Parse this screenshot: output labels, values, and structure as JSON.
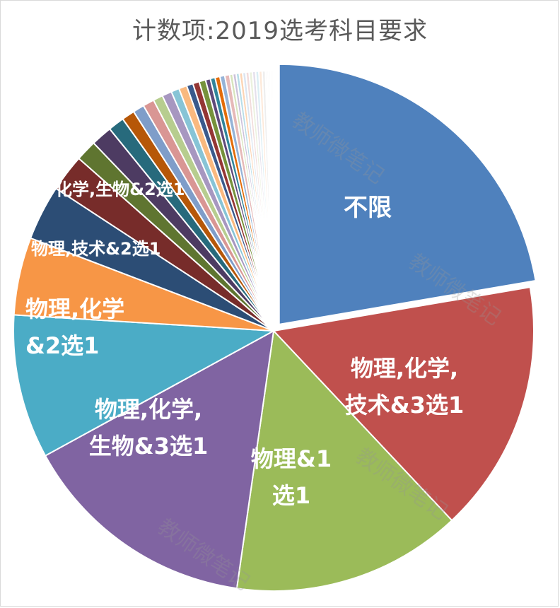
{
  "watermark_text": "教师微笔记",
  "chart_data": {
    "type": "pie",
    "title": "计数项:2019选考科目要求",
    "slices": [
      {
        "label": "不限",
        "value": 22.2,
        "color": "#4f81bd",
        "label_lines": [
          "不限"
        ]
      },
      {
        "label": "物理,化学,技术&3选1",
        "value": 15.6,
        "color": "#c0504d",
        "label_lines": [
          "物理,化学,",
          "技术&3选1"
        ]
      },
      {
        "label": "物理&1选1",
        "value": 14.2,
        "color": "#9bbb59",
        "label_lines": [
          "物理&1",
          "选1"
        ]
      },
      {
        "label": "物理,化学,生物&3选1",
        "value": 14.7,
        "color": "#8064a2",
        "label_lines": [
          "物理,化学,",
          "生物&3选1"
        ]
      },
      {
        "label": "物理,化学&2选1",
        "value": 8.9,
        "color": "#4bacc6",
        "label_lines": [
          "物理,化学",
          "&2选1"
        ]
      },
      {
        "label": "物理,技术&2选1",
        "value": 4.8,
        "color": "#f79646",
        "label_lines": [
          "物理,技术&2选1"
        ]
      },
      {
        "label": "化学,生物&2选1",
        "value": 3.4,
        "color": "#2c4d75",
        "label_lines": [
          "化学,生物&2选1"
        ]
      },
      {
        "label": "",
        "value": 2.3,
        "color": "#772c2a",
        "label_lines": []
      },
      {
        "label": "",
        "value": 1.3,
        "color": "#5f7530",
        "label_lines": []
      },
      {
        "label": "",
        "value": 1.3,
        "color": "#4d3b62",
        "label_lines": []
      },
      {
        "label": "",
        "value": 1.0,
        "color": "#276a7c",
        "label_lines": []
      },
      {
        "label": "",
        "value": 0.8,
        "color": "#b65708",
        "label_lines": []
      },
      {
        "label": "",
        "value": 0.7,
        "color": "#7f9dc9",
        "label_lines": []
      },
      {
        "label": "",
        "value": 0.7,
        "color": "#d99694",
        "label_lines": []
      },
      {
        "label": "",
        "value": 0.6,
        "color": "#b7cd8f",
        "label_lines": []
      },
      {
        "label": "",
        "value": 0.6,
        "color": "#a797c0",
        "label_lines": []
      },
      {
        "label": "",
        "value": 0.5,
        "color": "#87c4d6",
        "label_lines": []
      },
      {
        "label": "",
        "value": 0.5,
        "color": "#f9b97f",
        "label_lines": []
      },
      {
        "label": "",
        "value": 0.4,
        "color": "#3a5a8c",
        "label_lines": []
      },
      {
        "label": "",
        "value": 0.4,
        "color": "#943634",
        "label_lines": []
      },
      {
        "label": "",
        "value": 0.4,
        "color": "#76923c",
        "label_lines": []
      },
      {
        "label": "",
        "value": 0.3,
        "color": "#5f497a",
        "label_lines": []
      },
      {
        "label": "",
        "value": 0.3,
        "color": "#31859b",
        "label_lines": []
      },
      {
        "label": "",
        "value": 0.3,
        "color": "#e36c09",
        "label_lines": []
      },
      {
        "label": "",
        "value": 0.3,
        "color": "#95b3d7",
        "label_lines": []
      },
      {
        "label": "",
        "value": 0.3,
        "color": "#e6b9b8",
        "label_lines": []
      },
      {
        "label": "",
        "value": 0.2,
        "color": "#d7e4bd",
        "label_lines": []
      },
      {
        "label": "",
        "value": 0.2,
        "color": "#ccc1da",
        "label_lines": []
      },
      {
        "label": "",
        "value": 0.2,
        "color": "#b7dde8",
        "label_lines": []
      },
      {
        "label": "",
        "value": 0.2,
        "color": "#fcd5b5",
        "label_lines": []
      },
      {
        "label": "",
        "value": 0.2,
        "color": "#dbe5f1",
        "label_lines": []
      },
      {
        "label": "",
        "value": 0.2,
        "color": "#f2dcdb",
        "label_lines": []
      },
      {
        "label": "",
        "value": 0.2,
        "color": "#ebf1de",
        "label_lines": []
      },
      {
        "label": "",
        "value": 0.2,
        "color": "#e5e0ec",
        "label_lines": []
      },
      {
        "label": "",
        "value": 0.2,
        "color": "#dbeef4",
        "label_lines": []
      },
      {
        "label": "",
        "value": 0.2,
        "color": "#fde9d9",
        "label_lines": []
      },
      {
        "label": "",
        "value": 0.2,
        "color": "#eeeeee",
        "label_lines": []
      },
      {
        "label": "",
        "value": 0.1,
        "color": "#f0f0f0",
        "label_lines": []
      },
      {
        "label": "",
        "value": 0.1,
        "color": "#f4f4f4",
        "label_lines": []
      },
      {
        "label": "",
        "value": 0.1,
        "color": "#f6f6f6",
        "label_lines": []
      },
      {
        "label": "",
        "value": 0.1,
        "color": "#f8f8f8",
        "label_lines": []
      },
      {
        "label": "",
        "value": 0.1,
        "color": "#fafafa",
        "label_lines": []
      }
    ],
    "start_angle_deg": 0,
    "direction": "clockwise",
    "exploded_first_slice": true,
    "legend": "none"
  }
}
